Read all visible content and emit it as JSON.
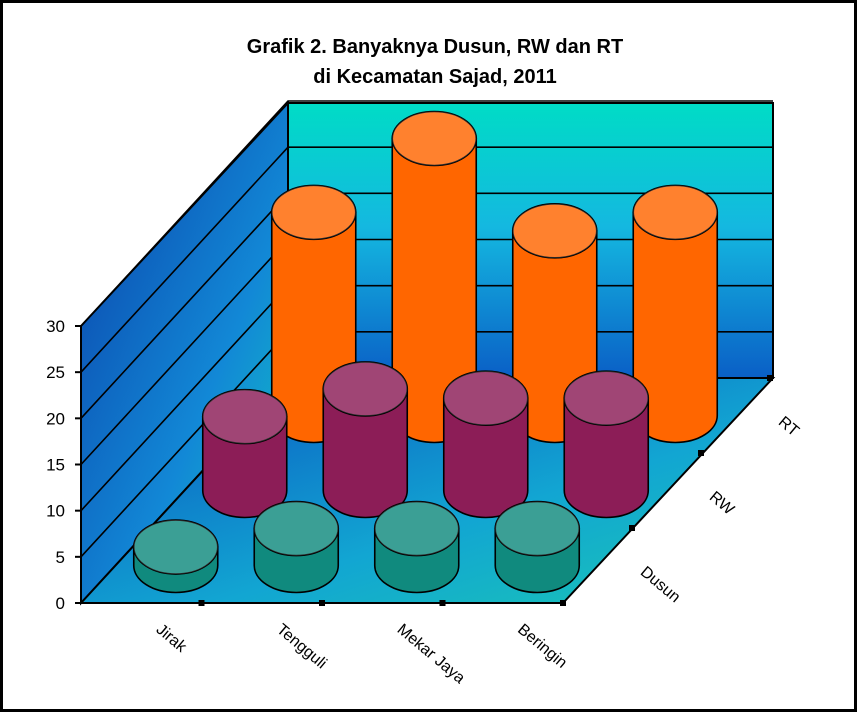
{
  "chart_data": {
    "type": "bar",
    "style": "3d-cylinder",
    "title": "Grafik 2. Banyaknya Dusun, RW dan RT",
    "subtitle": "di Kecamatan Sajad, 2011",
    "categories": [
      "Jirak",
      "Tengguli",
      "Mekar Jaya",
      "Beringin"
    ],
    "series": [
      {
        "name": "Dusun",
        "values": [
          2,
          4,
          4,
          4
        ],
        "color": "#108a7e"
      },
      {
        "name": "RW",
        "values": [
          8,
          11,
          10,
          10
        ],
        "color": "#8c1d57"
      },
      {
        "name": "RT",
        "values": [
          22,
          30,
          20,
          22
        ],
        "color": "#ff6600"
      }
    ],
    "yticks": [
      "0",
      "5",
      "10",
      "15",
      "20",
      "25",
      "30"
    ],
    "ylim": [
      0,
      30
    ],
    "grid": true
  },
  "colors": {
    "back_wall_top": "#00d9c8",
    "back_wall_bottom": "#0a66c8",
    "side_wall": "#0a5bbf",
    "floor": "#0b86d4"
  }
}
